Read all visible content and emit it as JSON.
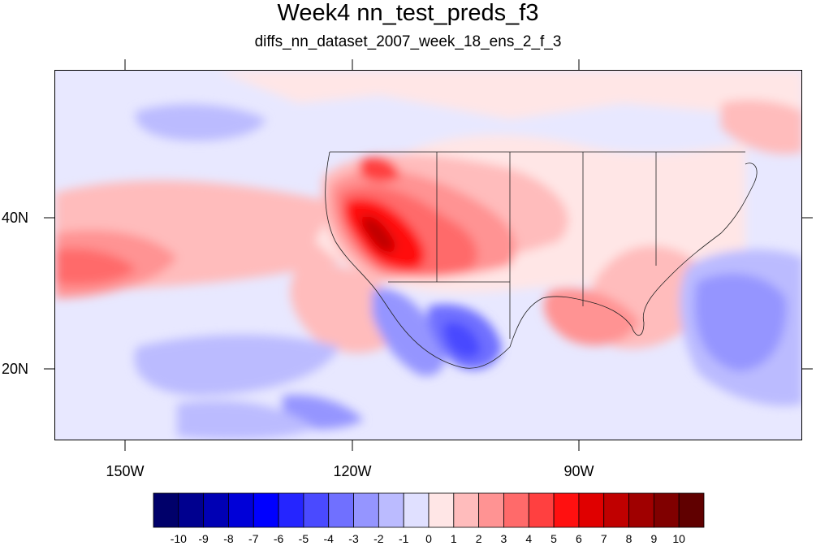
{
  "title": "Week4 nn_test_preds_f3",
  "subtitle": "diffs_nn_dataset_2007_week_18_ens_2_f_3",
  "lat_labels": [
    "40N",
    "20N"
  ],
  "lon_labels": [
    "150W",
    "120W",
    "90W"
  ],
  "colorbar": {
    "labels": [
      "-10",
      "-9",
      "-8",
      "-7",
      "-6",
      "-5",
      "-4",
      "-3",
      "-2",
      "-1",
      "0",
      "1",
      "2",
      "3",
      "4",
      "5",
      "6",
      "7",
      "8",
      "9",
      "10"
    ],
    "colors": [
      "#00006a",
      "#00008f",
      "#0000b4",
      "#0000d8",
      "#0000ff",
      "#2525ff",
      "#4a4aff",
      "#7070ff",
      "#9595ff",
      "#bbbbff",
      "#e0e0ff",
      "#ffe6e6",
      "#ffbcbc",
      "#ff9393",
      "#ff6a6a",
      "#ff4040",
      "#ff1010",
      "#e00000",
      "#c00000",
      "#a00000",
      "#800000",
      "#600000"
    ]
  }
}
